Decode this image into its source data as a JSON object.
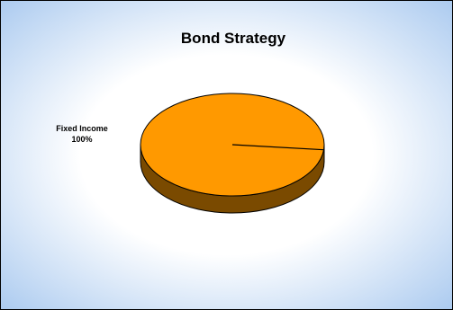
{
  "chart_data": {
    "type": "pie",
    "title": "Bond Strategy",
    "slices": [
      {
        "label": "Fixed Income",
        "value": 100,
        "value_label": "100%",
        "color": "#ff9900"
      }
    ],
    "three_d": true,
    "legend": "none",
    "colors": {
      "slice_top": "#ff9900",
      "slice_side": "#7a4a00",
      "background_center": "#ffffff",
      "background_edge": "#a9c9ef"
    }
  }
}
